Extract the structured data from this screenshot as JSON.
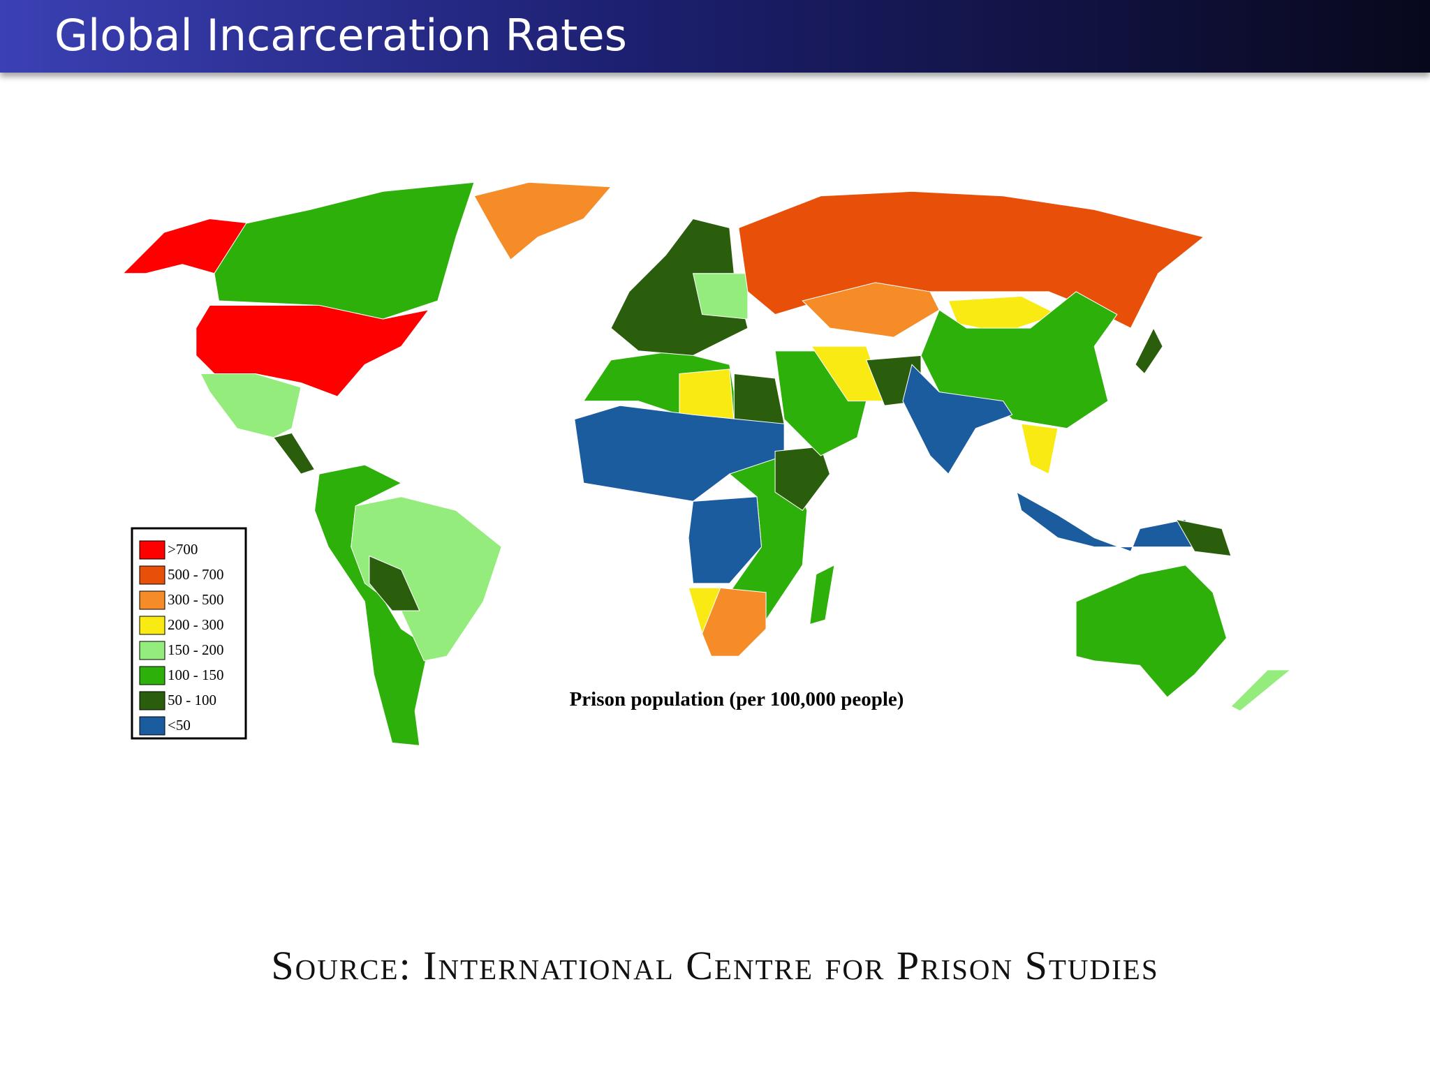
{
  "header": {
    "title": "Global Incarceration Rates"
  },
  "map": {
    "caption": "Prison population (per 100,000 people)",
    "legend": {
      "items": [
        {
          "label": ">700",
          "color": "#ff0000"
        },
        {
          "label": "500 - 700",
          "color": "#e8500a"
        },
        {
          "label": "300 - 500",
          "color": "#f58c28"
        },
        {
          "label": "200 - 300",
          "color": "#f8ea12"
        },
        {
          "label": "150 - 200",
          "color": "#94ec7c"
        },
        {
          "label": "100 - 150",
          "color": "#2eb00a"
        },
        {
          "label": "50 - 100",
          "color": "#2a5e0c"
        },
        {
          "label": "<50",
          "color": "#1a5c9e"
        }
      ]
    }
  },
  "footer": {
    "source": "Source: International Centre for Prison Studies"
  }
}
